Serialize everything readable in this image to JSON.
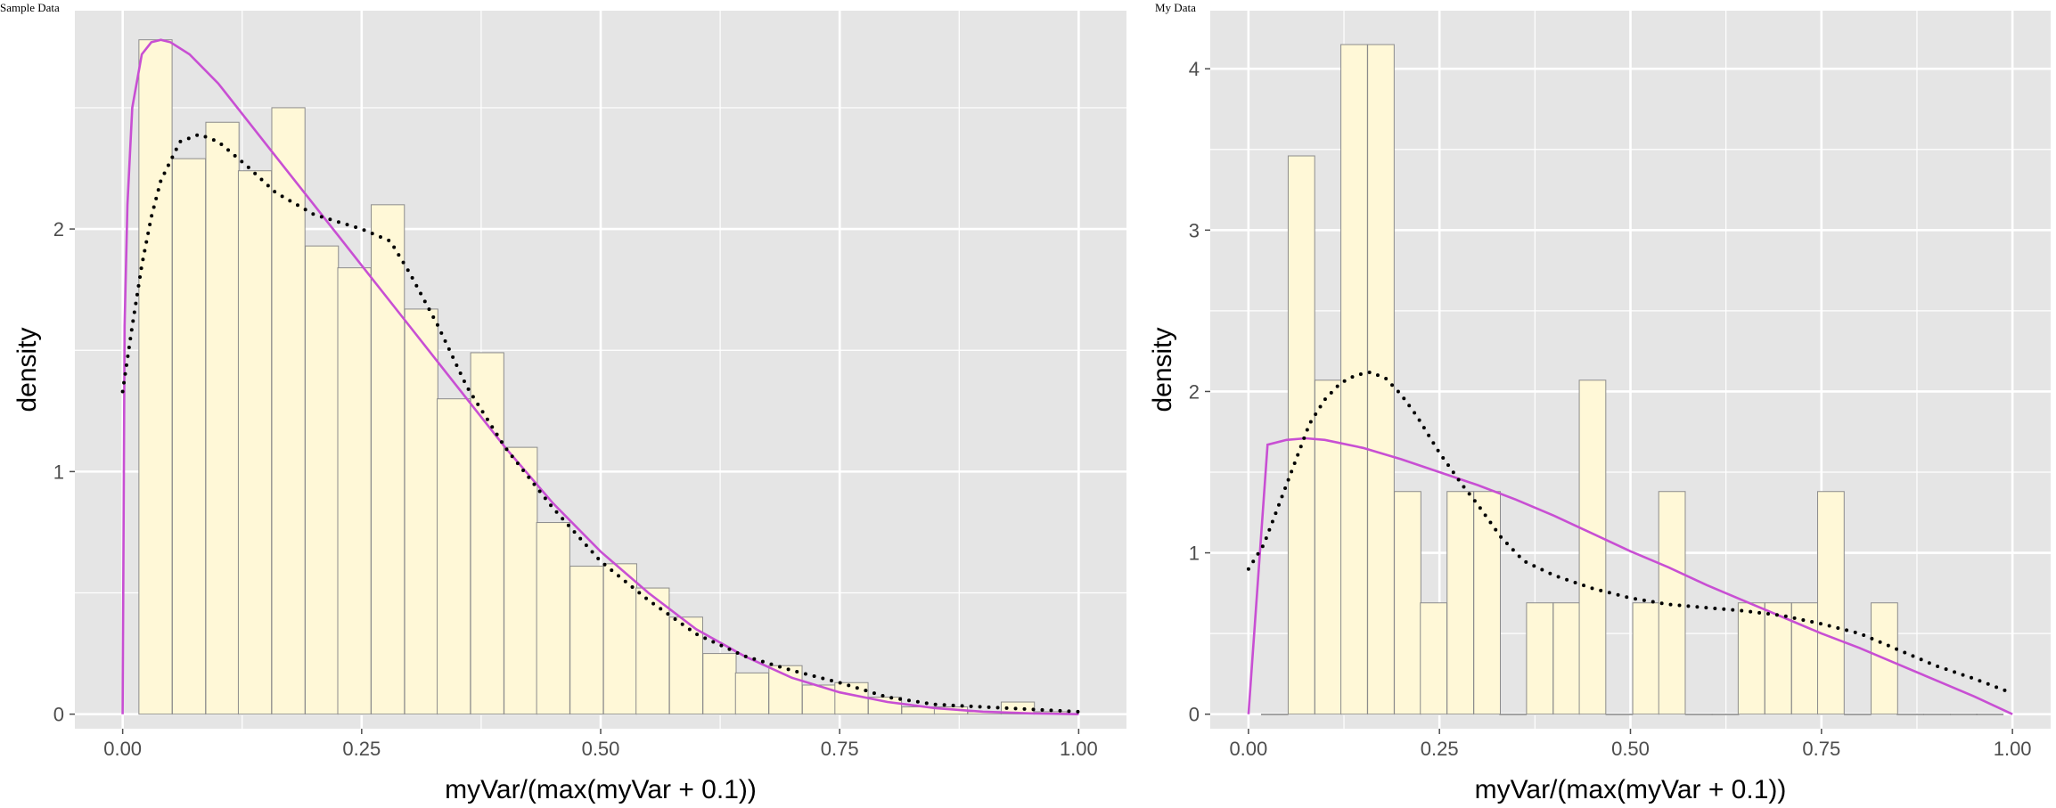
{
  "colors": {
    "panel_bg": "#e5e5e5",
    "grid": "#ffffff",
    "bar_fill": "#fff8d7",
    "bar_stroke": "#8c8c8c",
    "beta_line": "#c84fd3",
    "density_line": "#000000",
    "tick": "#4d4d4d"
  },
  "chart_data": [
    {
      "type": "histogram",
      "title": "Sample Data",
      "xlabel": "myVar/(max(myVar + 0.1))",
      "ylabel": "density",
      "xlim": [
        -0.05,
        1.05
      ],
      "ylim": [
        -0.06,
        2.9
      ],
      "x_ticks": [
        0,
        0.25,
        0.5,
        0.75,
        1
      ],
      "x_tick_labels": [
        "0.00",
        "0.25",
        "0.50",
        "0.75",
        "1.00"
      ],
      "y_ticks": [
        0,
        1,
        2
      ],
      "y_tick_labels": [
        "0",
        "1",
        "2"
      ],
      "grid": true,
      "bins": {
        "left_edges": [
          0.017,
          0.052,
          0.087,
          0.121,
          0.156,
          0.191,
          0.225,
          0.26,
          0.295,
          0.329,
          0.364,
          0.399,
          0.433,
          0.468,
          0.503,
          0.537,
          0.572,
          0.607,
          0.641,
          0.676,
          0.711,
          0.745,
          0.78,
          0.815,
          0.849,
          0.884,
          0.919,
          0.953
        ],
        "width": 0.0347,
        "values": [
          2.78,
          2.29,
          2.44,
          2.24,
          2.5,
          1.93,
          1.84,
          2.1,
          1.67,
          1.3,
          1.49,
          1.1,
          0.79,
          0.61,
          0.62,
          0.52,
          0.4,
          0.25,
          0.17,
          0.2,
          0.12,
          0.13,
          0.07,
          0.03,
          0.03,
          0.01,
          0.05,
          0.01
        ]
      },
      "series": [
        {
          "name": "",
          "style": "solid",
          "x": [
            0,
            0.002,
            0.005,
            0.01,
            0.02,
            0.03,
            0.04,
            0.05,
            0.07,
            0.1,
            0.15,
            0.2,
            0.25,
            0.3,
            0.35,
            0.4,
            0.45,
            0.5,
            0.55,
            0.6,
            0.65,
            0.7,
            0.75,
            0.8,
            0.85,
            0.9,
            0.95,
            1.0
          ],
          "y": [
            0,
            1.6,
            2.1,
            2.5,
            2.72,
            2.77,
            2.78,
            2.77,
            2.72,
            2.6,
            2.35,
            2.1,
            1.85,
            1.6,
            1.35,
            1.1,
            0.87,
            0.67,
            0.5,
            0.35,
            0.24,
            0.15,
            0.09,
            0.05,
            0.025,
            0.01,
            0.003,
            0
          ]
        },
        {
          "name": "",
          "style": "dotted",
          "x": [
            0,
            0.01,
            0.02,
            0.03,
            0.04,
            0.06,
            0.08,
            0.1,
            0.13,
            0.16,
            0.2,
            0.25,
            0.28,
            0.3,
            0.33,
            0.36,
            0.4,
            0.45,
            0.5,
            0.55,
            0.6,
            0.65,
            0.7,
            0.75,
            0.8,
            0.85,
            0.9,
            0.95,
            1.0
          ],
          "y": [
            1.33,
            1.6,
            1.85,
            2.05,
            2.2,
            2.36,
            2.39,
            2.36,
            2.26,
            2.15,
            2.06,
            2.0,
            1.95,
            1.82,
            1.6,
            1.35,
            1.1,
            0.85,
            0.63,
            0.47,
            0.33,
            0.24,
            0.18,
            0.13,
            0.07,
            0.04,
            0.03,
            0.02,
            0.01
          ]
        }
      ]
    },
    {
      "type": "histogram",
      "title": "My Data",
      "xlabel": "myVar/(max(myVar + 0.1))",
      "ylabel": "density",
      "xlim": [
        -0.05,
        1.05
      ],
      "ylim": [
        -0.09,
        4.36
      ],
      "x_ticks": [
        0,
        0.25,
        0.5,
        0.75,
        1
      ],
      "x_tick_labels": [
        "0.00",
        "0.25",
        "0.50",
        "0.75",
        "1.00"
      ],
      "y_ticks": [
        0,
        1,
        2,
        3,
        4
      ],
      "y_tick_labels": [
        "0",
        "1",
        "2",
        "3",
        "4"
      ],
      "grid": true,
      "bins": {
        "left_edges": [
          0.017,
          0.052,
          0.087,
          0.121,
          0.156,
          0.191,
          0.225,
          0.26,
          0.295,
          0.329,
          0.364,
          0.399,
          0.433,
          0.468,
          0.503,
          0.537,
          0.572,
          0.607,
          0.641,
          0.676,
          0.711,
          0.745,
          0.78,
          0.815,
          0.849,
          0.884,
          0.919,
          0.953
        ],
        "width": 0.0347,
        "values": [
          0,
          3.46,
          2.07,
          4.15,
          4.15,
          1.38,
          0.69,
          1.38,
          1.38,
          0,
          0.69,
          0.69,
          2.07,
          0,
          0.69,
          1.38,
          0,
          0,
          0.69,
          0.69,
          0.69,
          1.38,
          0,
          0.69,
          0,
          0,
          0,
          0
        ]
      },
      "series": [
        {
          "name": "",
          "style": "solid",
          "x": [
            0,
            0.025,
            0.05,
            0.075,
            0.1,
            0.15,
            0.2,
            0.25,
            0.3,
            0.35,
            0.4,
            0.45,
            0.5,
            0.55,
            0.6,
            0.65,
            0.7,
            0.75,
            0.8,
            0.85,
            0.9,
            0.95,
            1.0
          ],
          "y": [
            0,
            1.67,
            1.7,
            1.71,
            1.7,
            1.65,
            1.58,
            1.5,
            1.42,
            1.33,
            1.23,
            1.12,
            1.01,
            0.91,
            0.8,
            0.7,
            0.6,
            0.5,
            0.41,
            0.31,
            0.21,
            0.11,
            0
          ]
        },
        {
          "name": "",
          "style": "dotted",
          "x": [
            0,
            0.02,
            0.04,
            0.06,
            0.08,
            0.1,
            0.12,
            0.14,
            0.16,
            0.18,
            0.2,
            0.22,
            0.25,
            0.28,
            0.3,
            0.33,
            0.36,
            0.4,
            0.45,
            0.5,
            0.55,
            0.6,
            0.65,
            0.7,
            0.75,
            0.8,
            0.85,
            0.9,
            0.95,
            1.0
          ],
          "y": [
            0.9,
            1.05,
            1.3,
            1.55,
            1.8,
            1.95,
            2.05,
            2.1,
            2.12,
            2.08,
            1.98,
            1.85,
            1.62,
            1.42,
            1.3,
            1.1,
            0.95,
            0.86,
            0.78,
            0.72,
            0.68,
            0.66,
            0.64,
            0.61,
            0.56,
            0.5,
            0.4,
            0.3,
            0.22,
            0.13
          ]
        }
      ]
    }
  ]
}
